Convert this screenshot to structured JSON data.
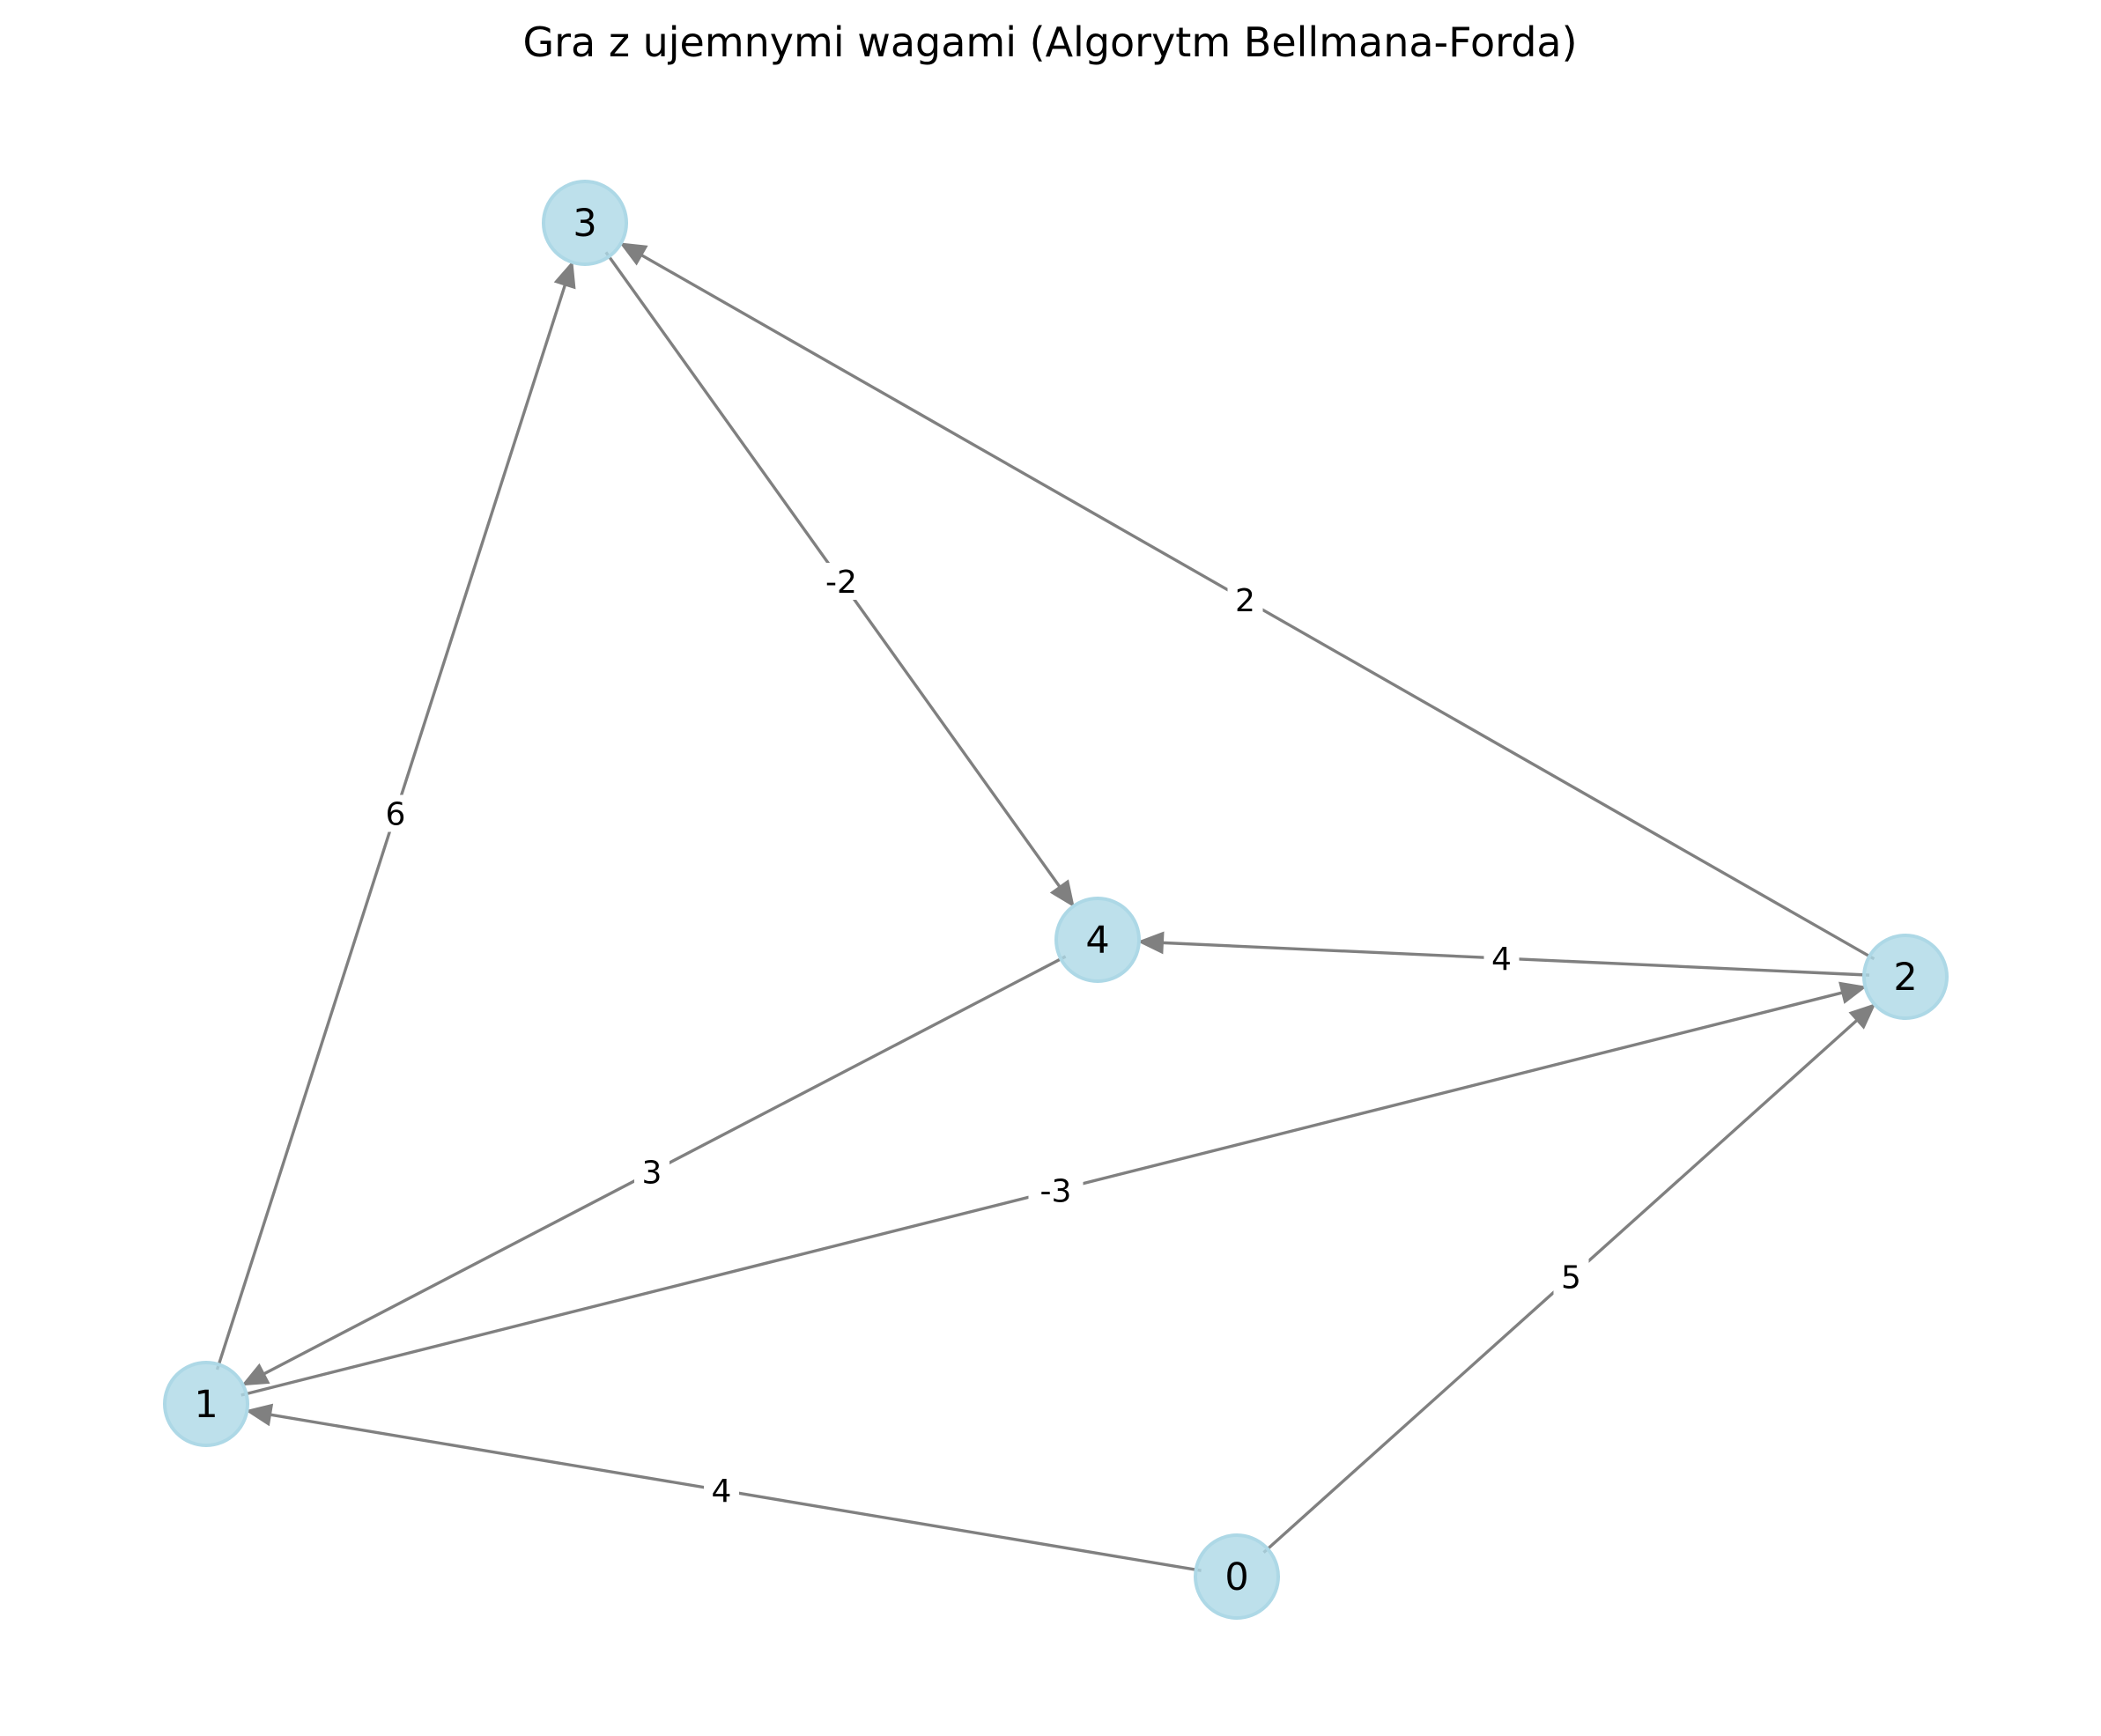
{
  "title": "Gra z ujemnymi wagami (Algorytm Bellmana-Forda)",
  "colors": {
    "node_fill": "#add8e6",
    "edge": "#808080",
    "background": "#ffffff"
  },
  "nodes": [
    {
      "id": "0",
      "label": "0"
    },
    {
      "id": "1",
      "label": "1"
    },
    {
      "id": "2",
      "label": "2"
    },
    {
      "id": "3",
      "label": "3"
    },
    {
      "id": "4",
      "label": "4"
    }
  ],
  "edges": [
    {
      "source": "0",
      "target": "1",
      "weight": "4"
    },
    {
      "source": "0",
      "target": "2",
      "weight": "5"
    },
    {
      "source": "1",
      "target": "2",
      "weight": "-3"
    },
    {
      "source": "1",
      "target": "3",
      "weight": "6"
    },
    {
      "source": "2",
      "target": "3",
      "weight": "2"
    },
    {
      "source": "2",
      "target": "4",
      "weight": "4"
    },
    {
      "source": "3",
      "target": "4",
      "weight": "-2"
    },
    {
      "source": "4",
      "target": "1",
      "weight": "3"
    }
  ]
}
